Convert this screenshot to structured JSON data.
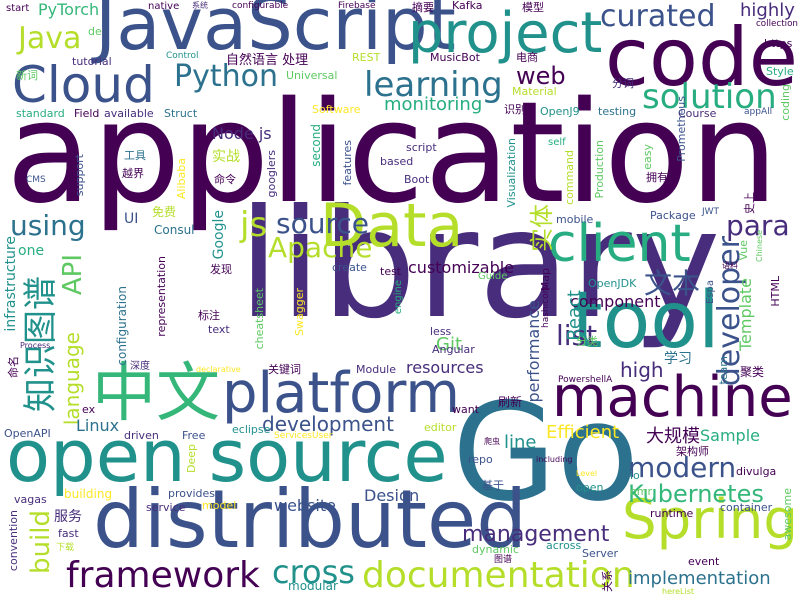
{
  "colors": {
    "c1": "#440154",
    "c2": "#3b528b",
    "c3": "#21918c",
    "c4": "#5ec962",
    "c5": "#b5de2b",
    "c6": "#fde725",
    "c7": "#2c728e",
    "c8": "#27ad81",
    "c9": "#472d7b",
    "c10": "#35b779"
  },
  "words": [
    {
      "text": "application",
      "color": "c1"
    },
    {
      "text": "library",
      "color": "c9"
    },
    {
      "text": "JavaScript",
      "color": "c2"
    },
    {
      "text": "Go",
      "color": "c7"
    },
    {
      "text": "code",
      "color": "c1"
    },
    {
      "text": "project",
      "color": "c3"
    },
    {
      "text": "open source",
      "color": "c3"
    },
    {
      "text": "distributed",
      "color": "c2"
    },
    {
      "text": "Data",
      "color": "c5"
    },
    {
      "text": "tool",
      "color": "c3"
    },
    {
      "text": "Cloud",
      "color": "c2"
    },
    {
      "text": "Spring",
      "color": "c5"
    },
    {
      "text": "platform",
      "color": "c2"
    },
    {
      "text": "machine",
      "color": "c1"
    },
    {
      "text": "client",
      "color": "c8"
    },
    {
      "text": "中文",
      "color": "c10"
    },
    {
      "text": "framework",
      "color": "c1"
    },
    {
      "text": "documentation",
      "color": "c5"
    },
    {
      "text": "learning",
      "color": "c7"
    },
    {
      "text": "solution",
      "color": "c8"
    },
    {
      "text": "curated",
      "color": "c2"
    },
    {
      "text": "web",
      "color": "c1"
    },
    {
      "text": "Python",
      "color": "c7"
    },
    {
      "text": "Java",
      "color": "c5"
    },
    {
      "text": "Kubernetes",
      "color": "c10"
    },
    {
      "text": "modern",
      "color": "c2"
    },
    {
      "text": "cross",
      "color": "c3"
    },
    {
      "text": "source",
      "color": "c2"
    },
    {
      "text": "js",
      "color": "c5"
    },
    {
      "text": "Apache",
      "color": "c5"
    },
    {
      "text": "para",
      "color": "c9"
    },
    {
      "text": "developer",
      "color": "c2"
    },
    {
      "text": "知识图谱",
      "color": "c3"
    },
    {
      "text": "API",
      "color": "c4"
    },
    {
      "text": "build",
      "color": "c5"
    },
    {
      "text": "using",
      "color": "c7"
    },
    {
      "text": "list",
      "color": "c9"
    },
    {
      "text": "文本",
      "color": "c2"
    },
    {
      "text": "management",
      "color": "c9"
    },
    {
      "text": "development",
      "color": "c2"
    },
    {
      "text": "component",
      "color": "c1"
    },
    {
      "text": "high",
      "color": "c9"
    },
    {
      "text": "highly",
      "color": "c9"
    },
    {
      "text": "monitoring",
      "color": "c8"
    },
    {
      "text": "language",
      "color": "c5"
    },
    {
      "text": "Efficient",
      "color": "c6"
    },
    {
      "text": "website",
      "color": "c2"
    },
    {
      "text": "Design",
      "color": "c2"
    },
    {
      "text": "implementation",
      "color": "c7"
    },
    {
      "text": "大规模",
      "color": "c1"
    },
    {
      "text": "Sample",
      "color": "c8"
    },
    {
      "text": "Node js",
      "color": "c9"
    },
    {
      "text": "实体",
      "color": "c5"
    },
    {
      "text": "resources",
      "color": "c9"
    },
    {
      "text": "customizable",
      "color": "c1"
    },
    {
      "text": "Git",
      "color": "c4"
    },
    {
      "text": "Linux",
      "color": "c7"
    },
    {
      "text": "infrastructure",
      "color": "c3"
    },
    {
      "text": "performance",
      "color": "c2"
    },
    {
      "text": "line",
      "color": "c3"
    },
    {
      "text": "React",
      "color": "c3"
    },
    {
      "text": "Template",
      "color": "c4"
    },
    {
      "text": "Google",
      "color": "c3"
    },
    {
      "text": "PyTorch",
      "color": "c10"
    },
    {
      "text": "自然语言 处理",
      "color": "c1"
    },
    {
      "text": "collection",
      "color": "c1"
    },
    {
      "text": "Kafka",
      "color": "c1"
    },
    {
      "text": "模型",
      "color": "c1"
    },
    {
      "text": "https",
      "color": "c1"
    },
    {
      "text": "Style",
      "color": "c8"
    },
    {
      "text": "Course",
      "color": "c9"
    },
    {
      "text": "coding",
      "color": "c4"
    },
    {
      "text": "Prometheus",
      "color": "c2"
    },
    {
      "text": "OpenJ9",
      "color": "c3"
    },
    {
      "text": "testing",
      "color": "c7"
    },
    {
      "text": "start",
      "color": "c1"
    },
    {
      "text": "native",
      "color": "c1"
    },
    {
      "text": "系统",
      "color": "c9"
    },
    {
      "text": "configurable",
      "color": "c1"
    },
    {
      "text": "Firebase",
      "color": "c1"
    },
    {
      "text": "摘要",
      "color": "c1"
    },
    {
      "text": "de",
      "color": "c4"
    },
    {
      "text": "新词",
      "color": "c4"
    },
    {
      "text": "tutorial",
      "color": "c9"
    },
    {
      "text": "Control",
      "color": "c3"
    },
    {
      "text": "MusicBot",
      "color": "c1"
    },
    {
      "text": "电商",
      "color": "c1"
    },
    {
      "text": "REST",
      "color": "c5"
    },
    {
      "text": "Universal",
      "color": "c4"
    },
    {
      "text": "standard",
      "color": "c8"
    },
    {
      "text": "Field",
      "color": "c1"
    },
    {
      "text": "available",
      "color": "c9"
    },
    {
      "text": "Struct",
      "color": "c7"
    },
    {
      "text": "Software",
      "color": "c6"
    },
    {
      "text": "识别",
      "color": "c1"
    },
    {
      "text": "Material",
      "color": "c5"
    },
    {
      "text": "分词",
      "color": "c9"
    },
    {
      "text": "appAll",
      "color": "c2"
    },
    {
      "text": "self",
      "color": "c8"
    },
    {
      "text": "script",
      "color": "c9"
    },
    {
      "text": "easy",
      "color": "c4"
    },
    {
      "text": "工具",
      "color": "c7"
    },
    {
      "text": "实战",
      "color": "c5"
    },
    {
      "text": "越界",
      "color": "c1"
    },
    {
      "text": "命令",
      "color": "c1"
    },
    {
      "text": "googlers",
      "color": "c9"
    },
    {
      "text": "second",
      "color": "c8"
    },
    {
      "text": "features",
      "color": "c2"
    },
    {
      "text": "based",
      "color": "c9"
    },
    {
      "text": "Boot",
      "color": "c9"
    },
    {
      "text": "Visualization",
      "color": "c3"
    },
    {
      "text": "command",
      "color": "c5"
    },
    {
      "text": "Production",
      "color": "c4"
    },
    {
      "text": "拥有",
      "color": "c1"
    },
    {
      "text": "small",
      "color": "c1"
    },
    {
      "text": "CMS",
      "color": "c2"
    },
    {
      "text": "support",
      "color": "c2"
    },
    {
      "text": "Alibaba",
      "color": "c6"
    },
    {
      "text": "免费",
      "color": "c5"
    },
    {
      "text": "Consul",
      "color": "c7"
    },
    {
      "text": "UI",
      "color": "c2"
    },
    {
      "text": "mobile",
      "color": "c2"
    },
    {
      "text": "Package",
      "color": "c2"
    },
    {
      "text": "JWT",
      "color": "c2"
    },
    {
      "text": "史上",
      "color": "c1"
    },
    {
      "text": "Chinese",
      "color": "c4"
    },
    {
      "text": "one",
      "color": "c8"
    },
    {
      "text": "发现",
      "color": "c1"
    },
    {
      "text": "create",
      "color": "c2"
    },
    {
      "text": "test",
      "color": "c1"
    },
    {
      "text": "Guide",
      "color": "c4"
    },
    {
      "text": "语料",
      "color": "c1"
    },
    {
      "text": "Vue",
      "color": "c4"
    },
    {
      "text": "OpenJDK",
      "color": "c3"
    },
    {
      "text": "Espa",
      "color": "c2"
    },
    {
      "text": "HTML",
      "color": "c1"
    },
    {
      "text": "representation",
      "color": "c1"
    },
    {
      "text": "configuration",
      "color": "c7"
    },
    {
      "text": "标注",
      "color": "c1"
    },
    {
      "text": "text",
      "color": "c9"
    },
    {
      "text": "cheatsheet",
      "color": "c4"
    },
    {
      "text": "Swagger",
      "color": "c6"
    },
    {
      "text": "engine",
      "color": "c8"
    },
    {
      "text": "less",
      "color": "c9"
    },
    {
      "text": "hashicorp",
      "color": "c1"
    },
    {
      "text": "Map",
      "color": "c1"
    },
    {
      "text": "分类",
      "color": "c4"
    },
    {
      "text": "学习",
      "color": "c7"
    },
    {
      "text": "team",
      "color": "c7"
    },
    {
      "text": "聚类",
      "color": "c1"
    },
    {
      "text": "Process",
      "color": "c9"
    },
    {
      "text": "深度",
      "color": "c9"
    },
    {
      "text": "declarative",
      "color": "c6"
    },
    {
      "text": "关键词",
      "color": "c1"
    },
    {
      "text": "Module",
      "color": "c9"
    },
    {
      "text": "Angular",
      "color": "c9"
    },
    {
      "text": "PowershellA",
      "color": "c1"
    },
    {
      "text": "命名",
      "color": "c1"
    },
    {
      "text": "ex",
      "color": "c1"
    },
    {
      "text": "want",
      "color": "c1"
    },
    {
      "text": "刷新",
      "color": "c1"
    },
    {
      "text": "OpenAPI",
      "color": "c2"
    },
    {
      "text": "driven",
      "color": "c9"
    },
    {
      "text": "Free",
      "color": "c2"
    },
    {
      "text": "eclipse",
      "color": "c3"
    },
    {
      "text": "ServicesUser",
      "color": "c6"
    },
    {
      "text": "editor",
      "color": "c5"
    },
    {
      "text": "架构师",
      "color": "c1"
    },
    {
      "text": "divulga",
      "color": "c1"
    },
    {
      "text": "Deep",
      "color": "c5"
    },
    {
      "text": "repo",
      "color": "c2"
    },
    {
      "text": "爬虫",
      "color": "c1"
    },
    {
      "text": "including",
      "color": "c1"
    },
    {
      "text": "io",
      "color": "c3"
    },
    {
      "text": "vagas",
      "color": "c9"
    },
    {
      "text": "building",
      "color": "c6"
    },
    {
      "text": "provides",
      "color": "c2"
    },
    {
      "text": "基于",
      "color": "c2"
    },
    {
      "text": "Level",
      "color": "c6"
    },
    {
      "text": "omr",
      "color": "c4"
    },
    {
      "text": "open",
      "color": "c3"
    },
    {
      "text": "服务",
      "color": "c9"
    },
    {
      "text": "service",
      "color": "c9"
    },
    {
      "text": "model",
      "color": "c6"
    },
    {
      "text": "runtime",
      "color": "c1"
    },
    {
      "text": "container",
      "color": "c2"
    },
    {
      "text": "awesome",
      "color": "c4"
    },
    {
      "text": "convention",
      "color": "c9"
    },
    {
      "text": "fast",
      "color": "c9"
    },
    {
      "text": "下载",
      "color": "c5"
    },
    {
      "text": "dynamic",
      "color": "c4"
    },
    {
      "text": "across",
      "color": "c3"
    },
    {
      "text": "Server",
      "color": "c2"
    },
    {
      "text": "图谱",
      "color": "c1"
    },
    {
      "text": "event",
      "color": "c1"
    },
    {
      "text": "modular",
      "color": "c3"
    },
    {
      "text": "关系",
      "color": "c1"
    },
    {
      "text": "hereList",
      "color": "c5"
    }
  ]
}
